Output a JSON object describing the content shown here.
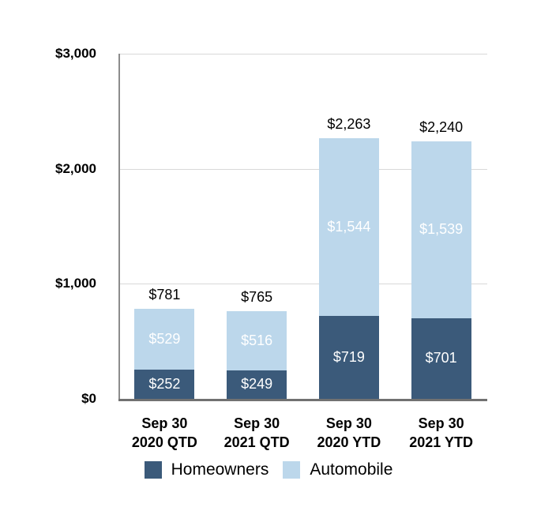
{
  "chart_data": {
    "type": "bar",
    "stacked": true,
    "title": "",
    "xlabel": "",
    "ylabel": "",
    "ylim": [
      0,
      3000
    ],
    "grid": true,
    "legend_position": "bottom",
    "yticks": [
      {
        "value": 3000,
        "label": "$3,000"
      },
      {
        "value": 2000,
        "label": "$2,000"
      },
      {
        "value": 1000,
        "label": "$1,000"
      },
      {
        "value": 0,
        "label": "$0"
      }
    ],
    "categories": [
      {
        "lines": [
          "Sep 30",
          "2020 QTD"
        ],
        "total_value": 781,
        "total_label": "$781"
      },
      {
        "lines": [
          "Sep 30",
          "2021 QTD"
        ],
        "total_value": 765,
        "total_label": "$765"
      },
      {
        "lines": [
          "Sep 30",
          "2020 YTD"
        ],
        "total_value": 2263,
        "total_label": "$2,263"
      },
      {
        "lines": [
          "Sep 30",
          "2021 YTD"
        ],
        "total_value": 2240,
        "total_label": "$2,240"
      }
    ],
    "series": [
      {
        "name": "Homeowners",
        "color": "#3b5a7a",
        "stack_position": "bottom",
        "values": [
          252,
          249,
          719,
          701
        ],
        "labels": [
          "$252",
          "$249",
          "$719",
          "$701"
        ]
      },
      {
        "name": "Automobile",
        "color": "#bcd7eb",
        "stack_position": "top",
        "values": [
          529,
          516,
          1544,
          1539
        ],
        "labels": [
          "$529",
          "$516",
          "$1,544",
          "$1,539"
        ]
      }
    ],
    "colors": {
      "homeowners": "#3b5a7a",
      "automobile": "#bcd7eb",
      "gridline": "#d9d9d9",
      "axis_line_vertical": "#8c8c8c",
      "axis_line_bottom": "#717171",
      "segment_label_text": "#ffffff",
      "text": "#000000"
    }
  }
}
